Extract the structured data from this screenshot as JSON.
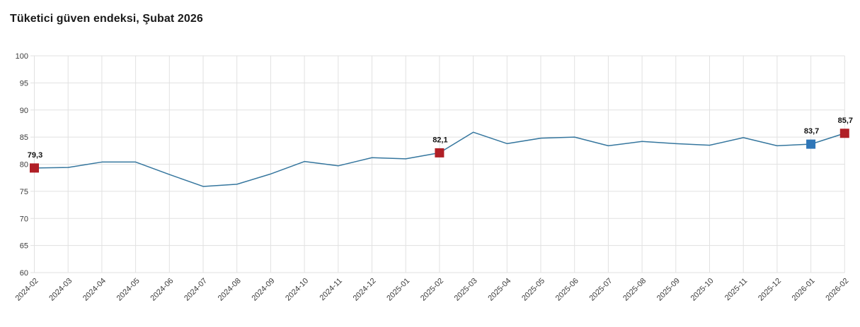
{
  "header": {
    "title": "Tüketici güven endeksi, Şubat 2026"
  },
  "colors": {
    "line": "#35769e",
    "grid": "#e1e1e1",
    "axis_text": "#3c3c3c",
    "title_text": "#1a1a1a",
    "marker_red": "#b01f26",
    "marker_blue": "#2e76b8"
  },
  "chart_data": {
    "type": "line",
    "title": "Tüketici güven endeksi, Şubat 2026",
    "xlabel": "",
    "ylabel": "",
    "ylim": [
      60,
      100
    ],
    "yticks": [
      60,
      65,
      70,
      75,
      80,
      85,
      90,
      95,
      100
    ],
    "grid": true,
    "legend": false,
    "categories": [
      "2024-02",
      "2024-03",
      "2024-04",
      "2024-05",
      "2024-06",
      "2024-07",
      "2024-08",
      "2024-09",
      "2024-10",
      "2024-11",
      "2024-12",
      "2025-01",
      "2025-02",
      "2025-03",
      "2025-04",
      "2025-05",
      "2025-06",
      "2025-07",
      "2025-08",
      "2025-09",
      "2025-10",
      "2025-11",
      "2025-12",
      "2026-01",
      "2026-02"
    ],
    "series": [
      {
        "name": "Tüketici güven endeksi",
        "values": [
          79.3,
          79.4,
          80.4,
          80.4,
          78.1,
          75.9,
          76.3,
          78.2,
          80.5,
          79.7,
          81.2,
          81.0,
          82.1,
          85.9,
          83.8,
          84.8,
          85.0,
          83.4,
          84.2,
          83.8,
          83.5,
          84.9,
          83.4,
          83.7,
          85.7
        ]
      }
    ],
    "highlighted_points": [
      {
        "category": "2024-02",
        "value": 79.3,
        "label": "79,3",
        "marker_color": "#b01f26"
      },
      {
        "category": "2025-02",
        "value": 82.1,
        "label": "82,1",
        "marker_color": "#b01f26"
      },
      {
        "category": "2026-01",
        "value": 83.7,
        "label": "83,7",
        "marker_color": "#2e76b8"
      },
      {
        "category": "2026-02",
        "value": 85.7,
        "label": "85,7",
        "marker_color": "#b01f26"
      }
    ]
  }
}
